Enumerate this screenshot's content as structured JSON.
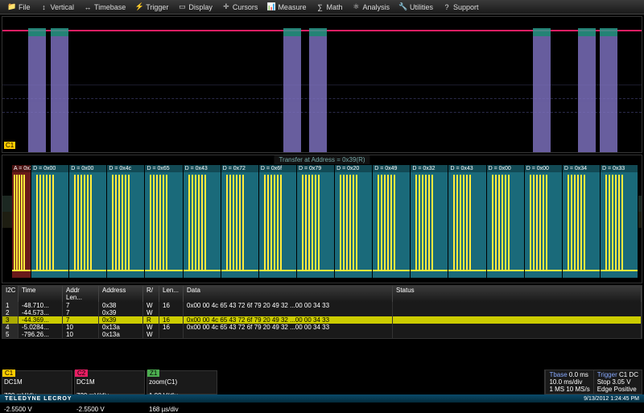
{
  "menu": [
    {
      "label": "File",
      "icon": "📁"
    },
    {
      "label": "Vertical",
      "icon": "↕"
    },
    {
      "label": "Timebase",
      "icon": "↔"
    },
    {
      "label": "Trigger",
      "icon": "⚡"
    },
    {
      "label": "Display",
      "icon": "▭"
    },
    {
      "label": "Cursors",
      "icon": "✛"
    },
    {
      "label": "Measure",
      "icon": "📊"
    },
    {
      "label": "Math",
      "icon": "∑"
    },
    {
      "label": "Analysis",
      "icon": "⚛"
    },
    {
      "label": "Utilities",
      "icon": "🔧"
    },
    {
      "label": "Support",
      "icon": "?"
    }
  ],
  "upper": {
    "c1_label": "C1",
    "grid_color": "#1a1a2a",
    "dash_color": "#2a2a4a",
    "trace_color": "#e91e63",
    "burst_color": "#7a6eba",
    "burst_top_color": "#2a9a8a",
    "burst_positions_pct": [
      4,
      7.5,
      44,
      48,
      83,
      90,
      93.5
    ]
  },
  "lower": {
    "transfer_label": "Transfer at Address = 0x39(R)",
    "address_cell": "A = 0x39",
    "cells": [
      "D = 0x00",
      "D = 0x00",
      "D = 0x4c",
      "D = 0x65",
      "D = 0x43",
      "D = 0x72",
      "D = 0x6f",
      "D = 0x79",
      "D = 0x20",
      "D = 0x49",
      "D = 0x32",
      "D = 0x43",
      "D = 0x00",
      "D = 0x00",
      "D = 0x34",
      "D = 0x33"
    ],
    "yellow": "#ffeb3b",
    "bg_data": "#1a6a7a",
    "bg_addr": "#6a1a1a"
  },
  "table": {
    "proto_label": "I2C",
    "headers": [
      "Time",
      "Addr Len...",
      "Address",
      "R/",
      "Len...",
      "Data",
      "Status"
    ],
    "rows": [
      {
        "idx": "1",
        "time": "-48.710...",
        "addrlen": "7",
        "addr": "0x38",
        "rw": "W",
        "len": "16",
        "data": "0x00 00 4c 65 43 72 6f 79 20 49 32 ...00 00 34 33",
        "status": "",
        "hl": false
      },
      {
        "idx": "2",
        "time": "-44.573...",
        "addrlen": "7",
        "addr": "0x39",
        "rw": "W",
        "len": "",
        "data": "",
        "status": "",
        "hl": false
      },
      {
        "idx": "3",
        "time": "-44.369...",
        "addrlen": "7",
        "addr": "0x39",
        "rw": "R",
        "len": "16",
        "data": "0x00 00 4c 65 43 72 6f 79 20 49 32 ...00 00 34 33",
        "status": "",
        "hl": true
      },
      {
        "idx": "4",
        "time": "-5.0284...",
        "addrlen": "10",
        "addr": "0x13a",
        "rw": "W",
        "len": "16",
        "data": "0x00 00 4c 65 43 72 6f 79 20 49 32 ...00 00 34 33",
        "status": "",
        "hl": false
      },
      {
        "idx": "5",
        "time": "-796.26...",
        "addrlen": "10",
        "addr": "0x13a",
        "rw": "W",
        "len": "",
        "data": "",
        "status": "",
        "hl": false
      }
    ]
  },
  "channels": {
    "c1": {
      "tag": "C1",
      "coupling": "DC1M",
      "vdiv": "720 mV/div",
      "offset": "-2.5500 V"
    },
    "c2": {
      "tag": "C2",
      "coupling": "DC1M",
      "vdiv": "720 mV/div",
      "offset": "-2.5500 V"
    },
    "z1": {
      "tag": "Z1",
      "name": "zoom(C1)",
      "vdiv": "1.00 V/div",
      "tdiv": "168 µs/div"
    }
  },
  "tbase": {
    "label": "Tbase",
    "delay": "0.0 ms",
    "tdiv": "10.0 ms/div",
    "samples": "1 MS",
    "rate": "10 MS/s"
  },
  "trigger": {
    "label": "Trigger",
    "src": "C1 DC",
    "mode": "Stop",
    "level": "3.05 V",
    "slope": "Edge",
    "polarity": "Positive"
  },
  "footer": {
    "brand": "TELEDYNE LECROY",
    "timestamp": "9/13/2012 1:24:45 PM"
  }
}
